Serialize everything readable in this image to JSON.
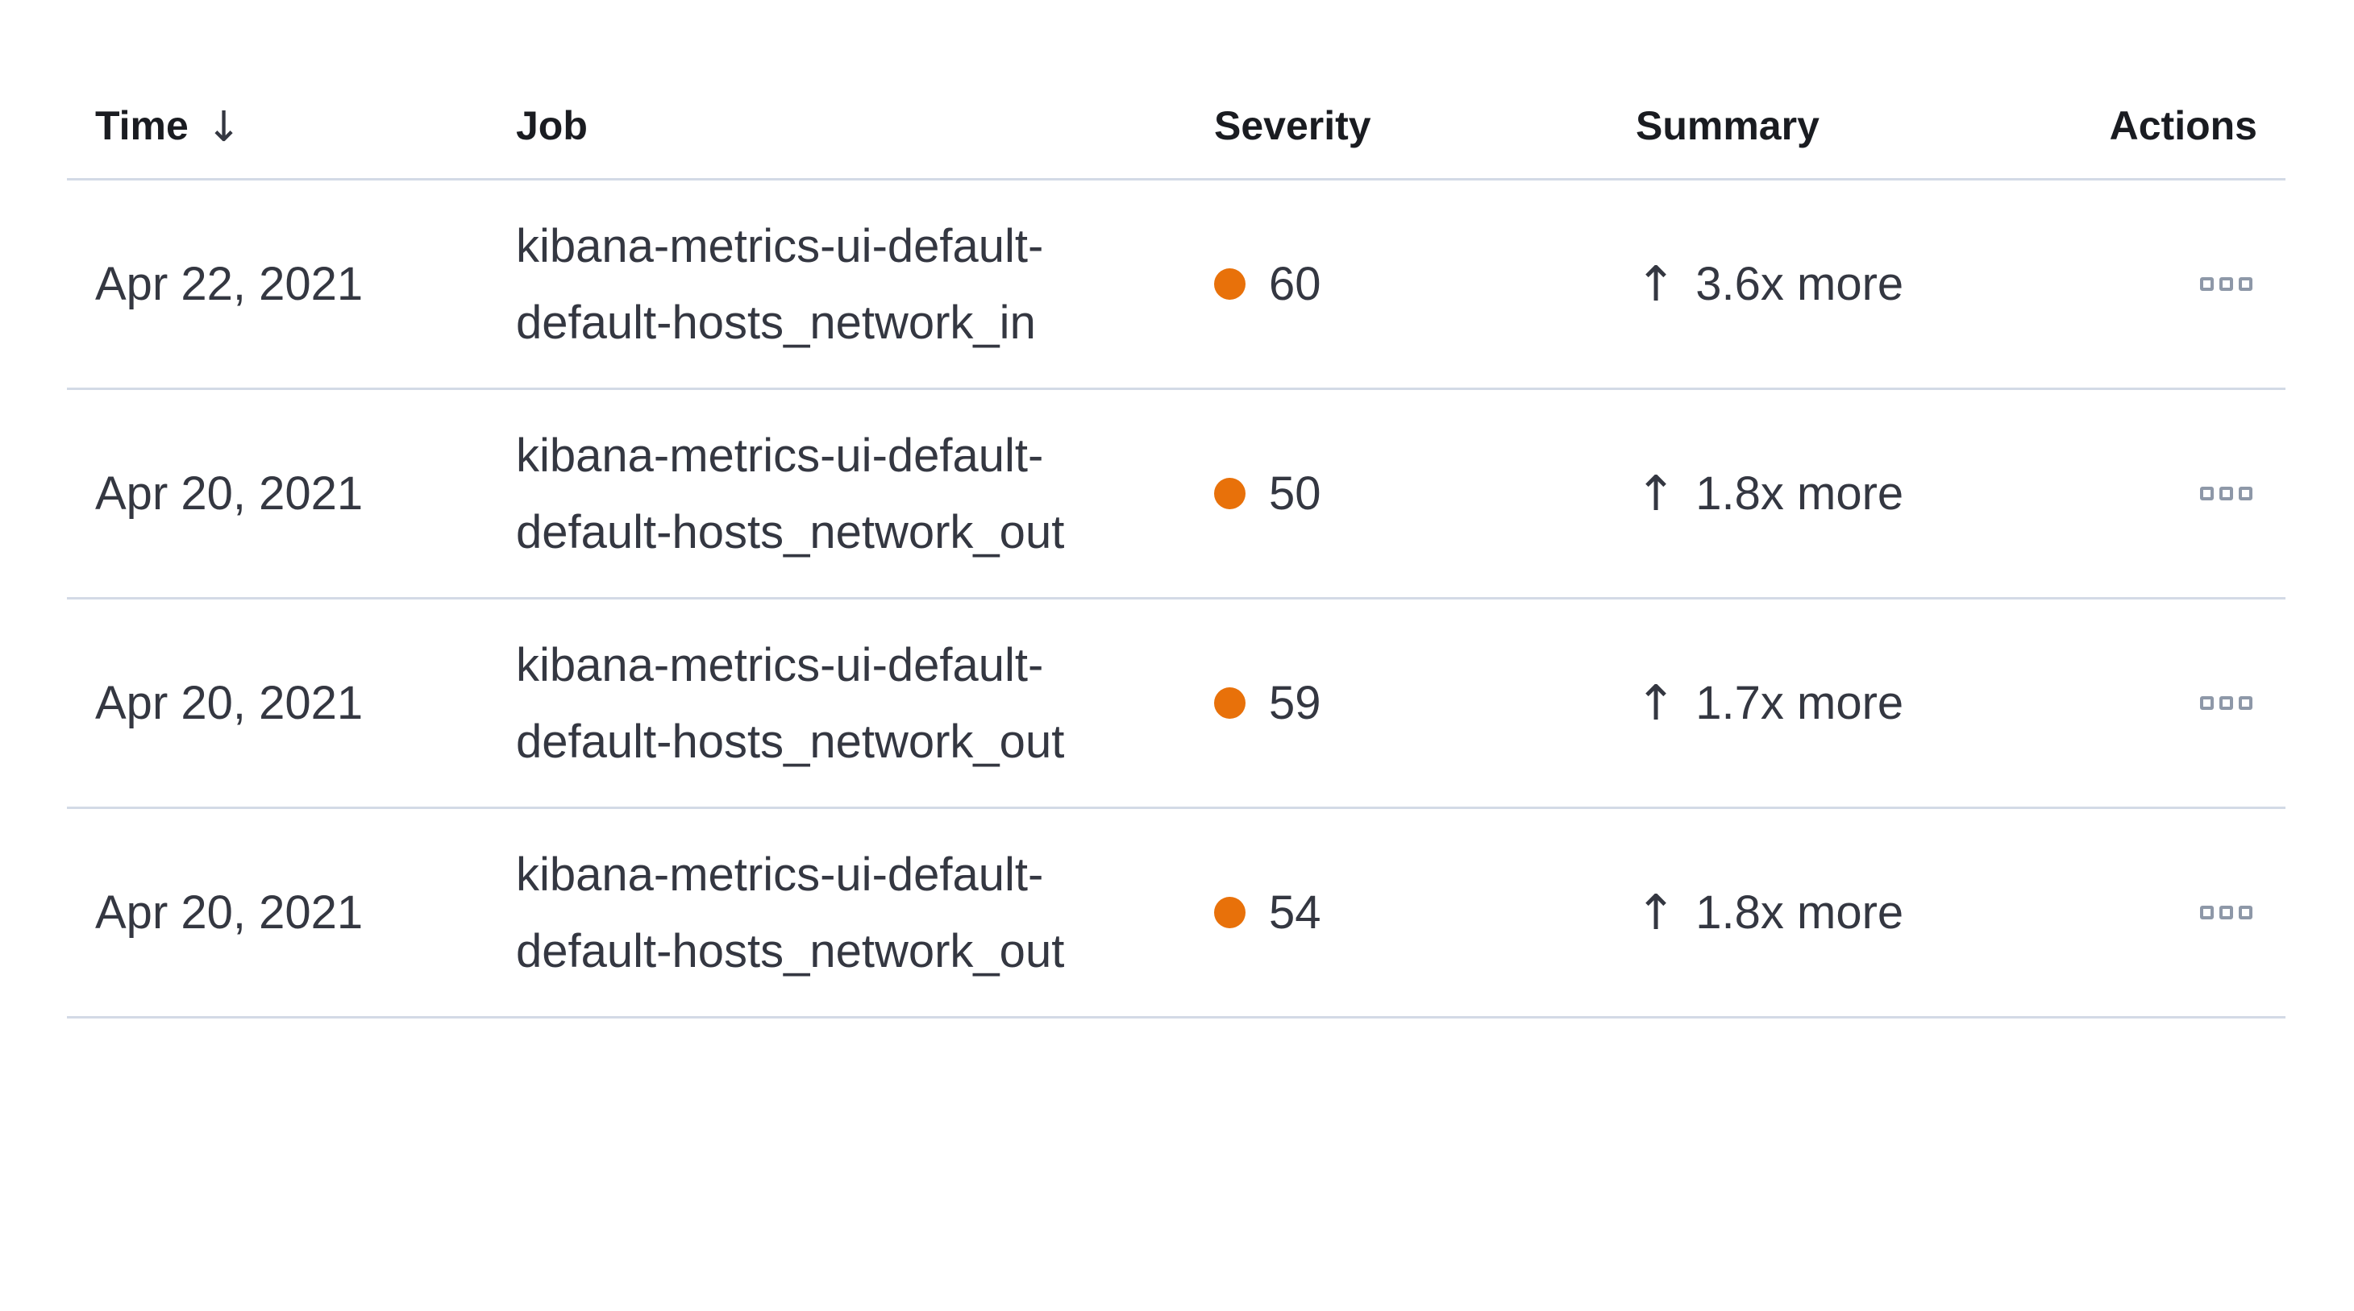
{
  "anomalies_table": {
    "columns": [
      {
        "label": "Time",
        "sortable": true,
        "sort": "desc"
      },
      {
        "label": "Job",
        "sortable": false
      },
      {
        "label": "Severity",
        "sortable": false
      },
      {
        "label": "Summary",
        "sortable": false
      },
      {
        "label": "Actions",
        "sortable": false
      }
    ],
    "icons": {
      "sort_desc": "↓",
      "trend_up": "↑",
      "row_actions": "boxes-horizontal"
    },
    "colors": {
      "page_bg": "#ffffff",
      "divider": "#d3dae6",
      "header_text": "#1a1c21",
      "body_text": "#343741",
      "severity_dot": "#e8710a",
      "actions_icon": "#8e98a8"
    },
    "rows": [
      {
        "time": "Apr 22, 2021",
        "job": "kibana-metrics-ui-default-default-hosts_network_in",
        "severity": "60",
        "summary": "3.6x more"
      },
      {
        "time": "Apr 20, 2021",
        "job": "kibana-metrics-ui-default-default-hosts_network_out",
        "severity": "50",
        "summary": "1.8x more"
      },
      {
        "time": "Apr 20, 2021",
        "job": "kibana-metrics-ui-default-default-hosts_network_out",
        "severity": "59",
        "summary": "1.7x more"
      },
      {
        "time": "Apr 20, 2021",
        "job": "kibana-metrics-ui-default-default-hosts_network_out",
        "severity": "54",
        "summary": "1.8x more"
      }
    ]
  }
}
